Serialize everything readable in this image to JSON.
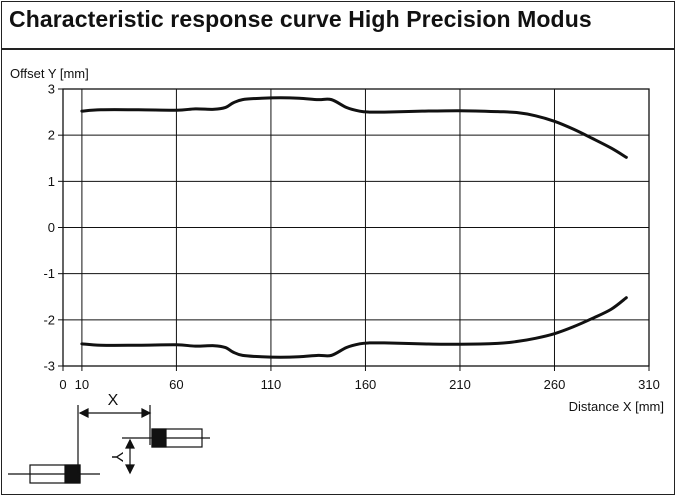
{
  "chart_data": {
    "type": "line",
    "title": "Characteristic response curve High Precision Modus",
    "ylabel": "Offset Y [mm]",
    "xlabel": "Distance X [mm]",
    "xlim": [
      0,
      310
    ],
    "ylim": [
      -3,
      3
    ],
    "x_ticks": [
      0,
      10,
      60,
      110,
      160,
      210,
      260,
      310
    ],
    "y_ticks": [
      3,
      2,
      1,
      0,
      -1,
      -2,
      -3
    ],
    "grid": true,
    "line_color": "#111111",
    "series": [
      {
        "points": [
          [
            10,
            2.52
          ],
          [
            20,
            2.55
          ],
          [
            40,
            2.55
          ],
          [
            60,
            2.54
          ],
          [
            70,
            2.57
          ],
          [
            80,
            2.56
          ],
          [
            86,
            2.6
          ],
          [
            90,
            2.7
          ],
          [
            95,
            2.77
          ],
          [
            105,
            2.8
          ],
          [
            115,
            2.81
          ],
          [
            125,
            2.8
          ],
          [
            135,
            2.77
          ],
          [
            142,
            2.77
          ],
          [
            150,
            2.6
          ],
          [
            157,
            2.52
          ],
          [
            162,
            2.5
          ],
          [
            170,
            2.5
          ],
          [
            190,
            2.52
          ],
          [
            210,
            2.53
          ],
          [
            230,
            2.51
          ],
          [
            240,
            2.49
          ],
          [
            250,
            2.42
          ],
          [
            260,
            2.3
          ],
          [
            270,
            2.13
          ],
          [
            280,
            1.93
          ],
          [
            290,
            1.72
          ],
          [
            298,
            1.52
          ]
        ]
      },
      {
        "points": [
          [
            10,
            -2.52
          ],
          [
            20,
            -2.55
          ],
          [
            40,
            -2.55
          ],
          [
            60,
            -2.54
          ],
          [
            70,
            -2.57
          ],
          [
            80,
            -2.56
          ],
          [
            86,
            -2.6
          ],
          [
            90,
            -2.7
          ],
          [
            95,
            -2.77
          ],
          [
            105,
            -2.8
          ],
          [
            115,
            -2.81
          ],
          [
            125,
            -2.8
          ],
          [
            135,
            -2.77
          ],
          [
            142,
            -2.77
          ],
          [
            150,
            -2.6
          ],
          [
            157,
            -2.52
          ],
          [
            162,
            -2.5
          ],
          [
            170,
            -2.5
          ],
          [
            190,
            -2.52
          ],
          [
            210,
            -2.53
          ],
          [
            230,
            -2.51
          ],
          [
            240,
            -2.47
          ],
          [
            250,
            -2.4
          ],
          [
            260,
            -2.3
          ],
          [
            270,
            -2.15
          ],
          [
            280,
            -1.97
          ],
          [
            290,
            -1.77
          ],
          [
            298,
            -1.52
          ]
        ]
      }
    ]
  },
  "diagram": {
    "x_label": "X",
    "y_label": "Y"
  }
}
